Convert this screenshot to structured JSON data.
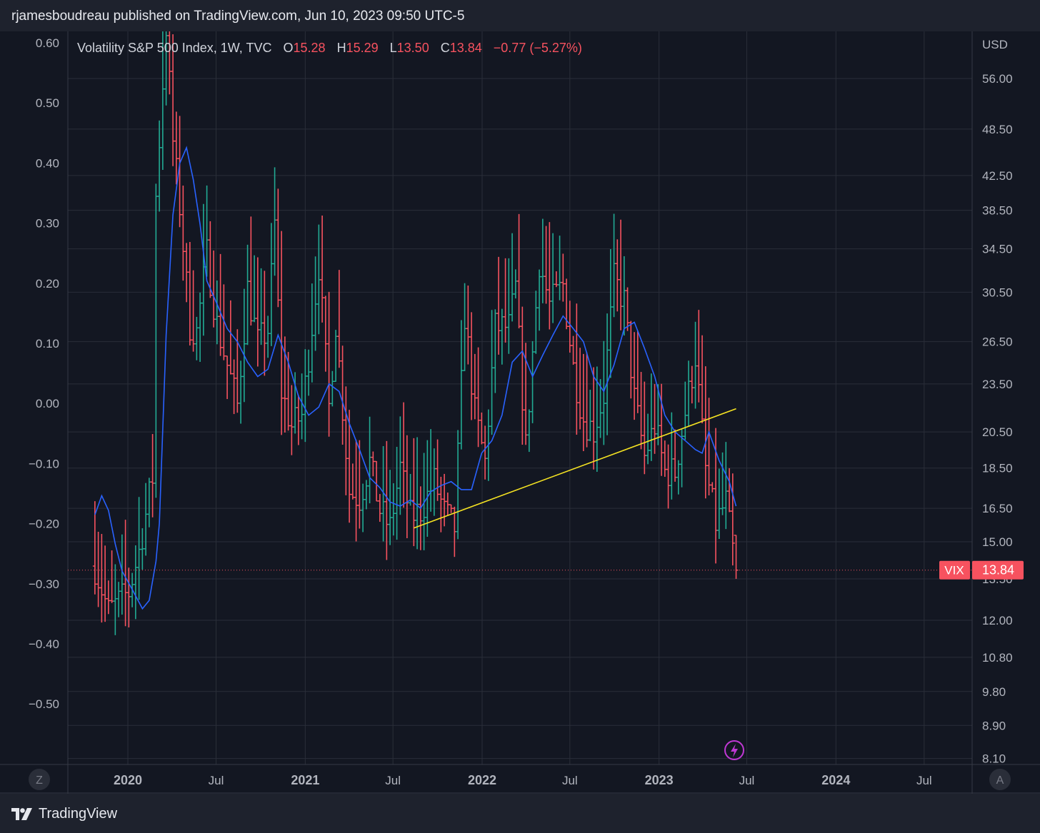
{
  "header": {
    "publish_line": "rjamesboudreau published on TradingView.com, Jun 10, 2023 09:50 UTC-5"
  },
  "footer": {
    "brand": "TradingView"
  },
  "legend": {
    "symbol": "Volatility S&P 500 Index, 1W, TVC",
    "o_label": "O",
    "o_value": "15.28",
    "h_label": "H",
    "h_value": "15.29",
    "l_label": "L",
    "l_value": "13.50",
    "c_label": "C",
    "c_value": "13.84",
    "change": "−0.77 (−5.27%)"
  },
  "price_tag": {
    "symbol": "VIX",
    "value": "13.84"
  },
  "axis_buttons": {
    "left": "Z",
    "right": "A"
  },
  "colors": {
    "background": "#131722",
    "up": "#22ab94",
    "down": "#f7525f",
    "moving_average": "#2962ff",
    "trendline": "#f5e322",
    "grid": "#2a2e39"
  },
  "chart_data": {
    "type": "ohlc",
    "title": "Volatility S&P 500 Index, 1W, TVC",
    "timeframe": "1W",
    "right_axis": {
      "unit": "USD",
      "scale": "log",
      "ticks": [
        "56.00",
        "48.50",
        "42.50",
        "38.50",
        "34.50",
        "30.50",
        "26.50",
        "23.50",
        "20.50",
        "18.50",
        "16.50",
        "15.00",
        "13.50",
        "12.00",
        "10.80",
        "9.80",
        "8.90",
        "8.10"
      ]
    },
    "left_axis": {
      "scale": "linear",
      "ticks": [
        "0.60",
        "0.50",
        "0.40",
        "0.30",
        "0.20",
        "0.10",
        "0.00",
        "−0.10",
        "−0.20",
        "−0.30",
        "−0.40",
        "−0.50"
      ]
    },
    "x_axis": {
      "ticks": [
        {
          "label": "2020",
          "bold": true
        },
        {
          "label": "Jul",
          "bold": false
        },
        {
          "label": "2021",
          "bold": true
        },
        {
          "label": "Jul",
          "bold": false
        },
        {
          "label": "2022",
          "bold": true
        },
        {
          "label": "Jul",
          "bold": false
        },
        {
          "label": "2023",
          "bold": true
        },
        {
          "label": "Jul",
          "bold": false
        },
        {
          "label": "2024",
          "bold": true
        },
        {
          "label": "Jul",
          "bold": false
        }
      ]
    },
    "last_price": 13.84,
    "series": [
      {
        "kind": "ohlc_close_path",
        "points": [
          [
            "2019-10-25",
            14.0
          ],
          [
            "2019-11-22",
            12.3
          ],
          [
            "2020-01-03",
            13.0
          ],
          [
            "2020-01-24",
            14.6
          ],
          [
            "2020-02-21",
            18.0
          ],
          [
            "2020-02-28",
            40.0
          ],
          [
            "2020-03-20",
            65.0
          ],
          [
            "2020-04-03",
            46.8
          ],
          [
            "2020-04-17",
            39.0
          ],
          [
            "2020-05-08",
            27.8
          ],
          [
            "2020-05-22",
            27.2
          ],
          [
            "2020-06-12",
            34.0
          ],
          [
            "2020-07-03",
            27.8
          ],
          [
            "2020-07-24",
            24.8
          ],
          [
            "2020-08-14",
            22.1
          ],
          [
            "2020-09-04",
            30.8
          ],
          [
            "2020-09-25",
            26.4
          ],
          [
            "2020-10-16",
            27.4
          ],
          [
            "2020-10-30",
            37.0
          ],
          [
            "2020-11-13",
            23.0
          ],
          [
            "2020-12-04",
            20.8
          ],
          [
            "2020-12-25",
            21.5
          ],
          [
            "2021-01-29",
            33.0
          ],
          [
            "2021-02-19",
            22.0
          ],
          [
            "2021-03-05",
            28.0
          ],
          [
            "2021-04-02",
            17.3
          ],
          [
            "2021-04-23",
            17.0
          ],
          [
            "2021-05-14",
            18.8
          ],
          [
            "2021-06-04",
            16.4
          ],
          [
            "2021-06-25",
            15.6
          ],
          [
            "2021-07-16",
            18.5
          ],
          [
            "2021-08-06",
            16.1
          ],
          [
            "2021-08-27",
            16.4
          ],
          [
            "2021-09-24",
            17.8
          ],
          [
            "2021-10-15",
            16.3
          ],
          [
            "2021-11-05",
            15.6
          ],
          [
            "2021-11-26",
            28.6
          ],
          [
            "2021-12-17",
            21.6
          ],
          [
            "2022-01-07",
            18.8
          ],
          [
            "2022-01-28",
            27.6
          ],
          [
            "2022-02-25",
            27.6
          ],
          [
            "2022-03-11",
            30.8
          ],
          [
            "2022-04-01",
            19.6
          ],
          [
            "2022-04-29",
            33.4
          ],
          [
            "2022-05-20",
            29.4
          ],
          [
            "2022-06-17",
            31.1
          ],
          [
            "2022-07-08",
            24.6
          ],
          [
            "2022-07-29",
            21.3
          ],
          [
            "2022-08-19",
            20.6
          ],
          [
            "2022-09-09",
            22.8
          ],
          [
            "2022-09-30",
            31.6
          ],
          [
            "2022-10-21",
            29.7
          ],
          [
            "2022-11-11",
            22.5
          ],
          [
            "2022-12-02",
            19.1
          ],
          [
            "2022-12-23",
            20.9
          ],
          [
            "2023-01-13",
            18.3
          ],
          [
            "2023-02-03",
            18.3
          ],
          [
            "2023-02-24",
            21.7
          ],
          [
            "2023-03-17",
            25.5
          ],
          [
            "2023-04-07",
            18.4
          ],
          [
            "2023-04-28",
            15.8
          ],
          [
            "2023-05-19",
            16.8
          ],
          [
            "2023-06-02",
            14.6
          ],
          [
            "2023-06-09",
            13.84
          ]
        ]
      },
      {
        "kind": "moving_average",
        "points": [
          [
            "2019-10-25",
            16.2
          ],
          [
            "2019-11-08",
            17.1
          ],
          [
            "2019-11-22",
            16.4
          ],
          [
            "2019-12-06",
            14.9
          ],
          [
            "2019-12-20",
            13.8
          ],
          [
            "2020-01-10",
            13.1
          ],
          [
            "2020-01-31",
            12.4
          ],
          [
            "2020-02-14",
            12.7
          ],
          [
            "2020-02-28",
            14.2
          ],
          [
            "2020-03-06",
            15.8
          ],
          [
            "2020-03-20",
            27.0
          ],
          [
            "2020-04-03",
            38.0
          ],
          [
            "2020-04-17",
            44.0
          ],
          [
            "2020-05-01",
            46.0
          ],
          [
            "2020-05-15",
            42.0
          ],
          [
            "2020-05-29",
            37.0
          ],
          [
            "2020-06-12",
            31.5
          ],
          [
            "2020-07-03",
            29.5
          ],
          [
            "2020-07-24",
            27.5
          ],
          [
            "2020-08-14",
            26.5
          ],
          [
            "2020-09-04",
            25.0
          ],
          [
            "2020-09-25",
            24.0
          ],
          [
            "2020-10-16",
            24.5
          ],
          [
            "2020-11-06",
            27.0
          ],
          [
            "2020-11-27",
            25.0
          ],
          [
            "2020-12-18",
            22.7
          ],
          [
            "2021-01-08",
            21.5
          ],
          [
            "2021-01-29",
            22.0
          ],
          [
            "2021-02-19",
            23.5
          ],
          [
            "2021-03-12",
            23.0
          ],
          [
            "2021-04-02",
            21.0
          ],
          [
            "2021-04-23",
            19.5
          ],
          [
            "2021-05-14",
            18.0
          ],
          [
            "2021-06-04",
            17.5
          ],
          [
            "2021-06-25",
            16.8
          ],
          [
            "2021-07-16",
            16.6
          ],
          [
            "2021-08-06",
            16.9
          ],
          [
            "2021-08-27",
            16.5
          ],
          [
            "2021-09-17",
            17.3
          ],
          [
            "2021-10-08",
            17.6
          ],
          [
            "2021-10-29",
            17.8
          ],
          [
            "2021-11-19",
            17.4
          ],
          [
            "2021-12-10",
            17.4
          ],
          [
            "2021-12-31",
            19.3
          ],
          [
            "2022-01-21",
            20.0
          ],
          [
            "2022-02-11",
            21.5
          ],
          [
            "2022-03-04",
            25.0
          ],
          [
            "2022-03-25",
            25.8
          ],
          [
            "2022-04-15",
            24.0
          ],
          [
            "2022-05-06",
            25.5
          ],
          [
            "2022-05-27",
            27.0
          ],
          [
            "2022-06-17",
            28.5
          ],
          [
            "2022-07-08",
            27.5
          ],
          [
            "2022-07-29",
            26.5
          ],
          [
            "2022-08-19",
            24.0
          ],
          [
            "2022-09-09",
            23.0
          ],
          [
            "2022-09-30",
            24.8
          ],
          [
            "2022-10-21",
            27.5
          ],
          [
            "2022-11-11",
            28.0
          ],
          [
            "2022-12-02",
            26.0
          ],
          [
            "2022-12-23",
            24.0
          ],
          [
            "2023-01-13",
            21.5
          ],
          [
            "2023-02-03",
            20.5
          ],
          [
            "2023-02-24",
            20.0
          ],
          [
            "2023-03-17",
            19.5
          ],
          [
            "2023-03-31",
            19.3
          ],
          [
            "2023-04-14",
            20.5
          ],
          [
            "2023-05-05",
            18.9
          ],
          [
            "2023-05-26",
            17.8
          ],
          [
            "2023-06-09",
            16.6
          ]
        ]
      },
      {
        "kind": "trendline",
        "points": [
          [
            "2021-08-13",
            15.6
          ],
          [
            "2023-06-09",
            21.9
          ]
        ]
      }
    ]
  }
}
